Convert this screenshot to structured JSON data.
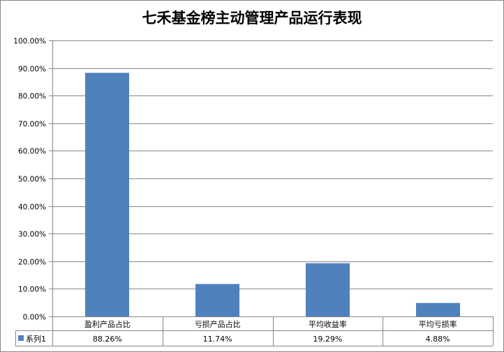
{
  "chart_data": {
    "type": "bar",
    "title": "七禾基金榜主动管理产品运行表现",
    "categories": [
      "盈利产品占比",
      "亏损产品占比",
      "平均收益率",
      "平均亏损率"
    ],
    "series": [
      {
        "name": "系列1",
        "values": [
          88.26,
          11.74,
          19.29,
          4.88
        ],
        "labels": [
          "88.26%",
          "11.74%",
          "19.29%",
          "4.88%"
        ]
      }
    ],
    "ylim": [
      0,
      100
    ],
    "yticks": [
      "0.00%",
      "10.00%",
      "20.00%",
      "30.00%",
      "40.00%",
      "50.00%",
      "60.00%",
      "70.00%",
      "80.00%",
      "90.00%",
      "100.00%"
    ],
    "grid": true,
    "legend": "data-table",
    "colors": {
      "bar": "#4f81bd",
      "grid": "#868686",
      "axis": "#868686"
    }
  }
}
